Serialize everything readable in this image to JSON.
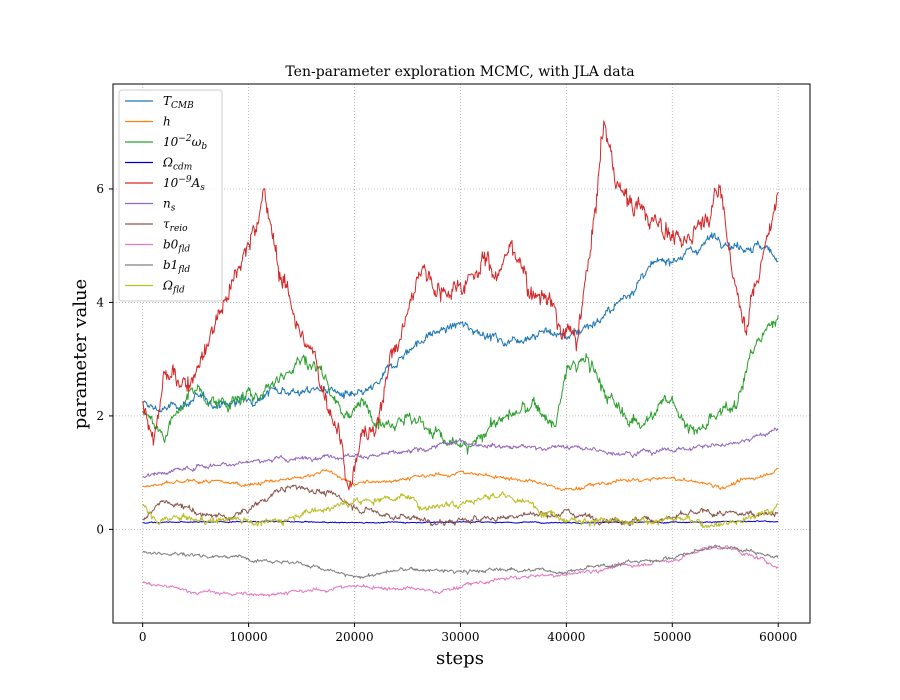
{
  "chart_data": {
    "type": "line",
    "title": "Ten-parameter exploration MCMC, with JLA data",
    "xlabel": "steps",
    "ylabel": "parameter value",
    "xlim": [
      -2800,
      63000
    ],
    "ylim": [
      -1.65,
      7.85
    ],
    "x_ticks": [
      0,
      10000,
      20000,
      30000,
      40000,
      50000,
      60000
    ],
    "x_tick_labels": [
      "0",
      "10000",
      "20000",
      "30000",
      "40000",
      "50000",
      "60000"
    ],
    "y_ticks": [
      0,
      2,
      4,
      6
    ],
    "y_tick_labels": [
      "0",
      "2",
      "4",
      "6"
    ],
    "grid": true,
    "legend_position": "top-left",
    "series": [
      {
        "name": "T_CMB",
        "color": "#1f77b4",
        "noise": 0.06,
        "x": [
          0,
          2000,
          5000,
          8000,
          10000,
          13000,
          15000,
          17000,
          20000,
          22000,
          24000,
          26000,
          28000,
          30000,
          32000,
          34000,
          36000,
          38000,
          40000,
          42000,
          44000,
          46000,
          48000,
          50000,
          52000,
          54000,
          56000,
          58000,
          60000
        ],
        "y": [
          2.2,
          2.1,
          2.3,
          2.2,
          2.3,
          2.5,
          2.4,
          2.5,
          2.3,
          2.5,
          3.0,
          3.3,
          3.5,
          3.6,
          3.5,
          3.3,
          3.4,
          3.5,
          3.4,
          3.6,
          3.8,
          4.2,
          4.6,
          4.8,
          4.9,
          5.2,
          5.0,
          5.0,
          4.8
        ]
      },
      {
        "name": "h",
        "color": "#ff7f0e",
        "noise": 0.025,
        "x": [
          0,
          5000,
          10000,
          15000,
          17000,
          20000,
          25000,
          30000,
          35000,
          40000,
          45000,
          50000,
          55000,
          60000
        ],
        "y": [
          0.75,
          0.85,
          0.8,
          0.9,
          1.05,
          0.8,
          0.9,
          1.0,
          0.9,
          0.7,
          0.85,
          0.9,
          0.75,
          1.05
        ]
      },
      {
        "name": "10^-2 ω_b",
        "color": "#2ca02c",
        "noise": 0.09,
        "x": [
          0,
          2000,
          5000,
          7000,
          10000,
          13000,
          15000,
          17000,
          19000,
          21000,
          23000,
          25000,
          27000,
          29000,
          31000,
          33000,
          35000,
          37000,
          39000,
          40000,
          42000,
          44000,
          46000,
          48000,
          50000,
          52000,
          54000,
          56000,
          58000,
          60000
        ],
        "y": [
          2.1,
          1.7,
          2.5,
          2.2,
          2.3,
          2.7,
          3.0,
          2.8,
          2.0,
          2.2,
          1.9,
          2.0,
          1.8,
          1.5,
          1.4,
          1.9,
          2.0,
          2.2,
          1.8,
          2.8,
          3.0,
          2.3,
          1.9,
          2.0,
          2.3,
          1.7,
          1.9,
          2.3,
          3.3,
          3.8
        ]
      },
      {
        "name": "Ω_cdm",
        "color": "#0000cc",
        "noise": 0.008,
        "x": [
          0,
          10000,
          20000,
          30000,
          40000,
          50000,
          60000
        ],
        "y": [
          0.12,
          0.14,
          0.12,
          0.13,
          0.12,
          0.13,
          0.14
        ]
      },
      {
        "name": "10^-9 A_s",
        "color": "#d62728",
        "noise": 0.14,
        "x": [
          0,
          1000,
          2000,
          4000,
          6000,
          8000,
          10000,
          11500,
          13000,
          15000,
          17000,
          18500,
          19500,
          21000,
          22000,
          23000,
          25000,
          26500,
          28000,
          30000,
          32000,
          33500,
          35000,
          37000,
          38000,
          39500,
          41000,
          42500,
          43500,
          45000,
          47000,
          49000,
          51000,
          53000,
          54500,
          56000,
          57000,
          58500,
          60000
        ],
        "y": [
          2.3,
          1.5,
          2.7,
          2.5,
          3.3,
          4.2,
          5.0,
          5.9,
          4.5,
          3.5,
          2.5,
          1.8,
          0.8,
          1.8,
          1.6,
          2.8,
          3.8,
          4.7,
          4.2,
          4.3,
          4.8,
          4.5,
          5.0,
          4.1,
          4.2,
          3.5,
          3.3,
          5.2,
          7.2,
          6.0,
          5.6,
          5.4,
          5.0,
          5.5,
          6.1,
          4.2,
          3.6,
          4.8,
          5.9
        ]
      },
      {
        "name": "n_s",
        "color": "#9467bd",
        "noise": 0.03,
        "x": [
          0,
          5000,
          10000,
          15000,
          18000,
          22000,
          25000,
          30000,
          35000,
          40000,
          45000,
          50000,
          55000,
          60000
        ],
        "y": [
          0.95,
          1.1,
          1.2,
          1.25,
          1.3,
          1.3,
          1.35,
          1.55,
          1.45,
          1.45,
          1.35,
          1.4,
          1.5,
          1.75
        ]
      },
      {
        "name": "τ_reio",
        "color": "#8c564b",
        "noise": 0.04,
        "x": [
          0,
          2000,
          5000,
          8000,
          10000,
          13000,
          15000,
          18000,
          20000,
          23000,
          26000,
          28000,
          30000,
          33000,
          36000,
          40000,
          43000,
          46000,
          50000,
          53000,
          56000,
          58000,
          60000
        ],
        "y": [
          0.2,
          0.5,
          0.3,
          0.2,
          0.35,
          0.7,
          0.75,
          0.6,
          0.4,
          0.25,
          0.2,
          0.1,
          0.15,
          0.2,
          0.25,
          0.3,
          0.2,
          0.15,
          0.2,
          0.3,
          0.25,
          0.3,
          0.3
        ]
      },
      {
        "name": "b0_fld",
        "color": "#e377c2",
        "noise": 0.025,
        "x": [
          0,
          5000,
          10000,
          15000,
          20000,
          25000,
          28000,
          30000,
          35000,
          40000,
          45000,
          50000,
          53000,
          55000,
          60000
        ],
        "y": [
          -0.95,
          -1.1,
          -1.15,
          -1.1,
          -1.0,
          -1.05,
          -1.1,
          -1.0,
          -0.85,
          -0.8,
          -0.65,
          -0.55,
          -0.35,
          -0.3,
          -0.65
        ]
      },
      {
        "name": "b1_fld",
        "color": "#7f7f7f",
        "noise": 0.025,
        "x": [
          0,
          5000,
          10000,
          15000,
          20000,
          25000,
          30000,
          35000,
          40000,
          45000,
          50000,
          54000,
          57000,
          60000
        ],
        "y": [
          -0.4,
          -0.45,
          -0.5,
          -0.6,
          -0.85,
          -0.7,
          -0.75,
          -0.7,
          -0.75,
          -0.6,
          -0.5,
          -0.3,
          -0.35,
          -0.5
        ]
      },
      {
        "name": "Ω_fld",
        "color": "#bcbd22",
        "noise": 0.05,
        "x": [
          0,
          1500,
          3000,
          6000,
          9000,
          12000,
          15000,
          18000,
          21000,
          24000,
          27000,
          30000,
          34000,
          37000,
          40000,
          43000,
          46000,
          50000,
          53000,
          56000,
          58000,
          60000
        ],
        "y": [
          0.4,
          0.1,
          0.2,
          0.15,
          0.2,
          0.1,
          0.3,
          0.4,
          0.5,
          0.6,
          0.4,
          0.5,
          0.6,
          0.4,
          0.2,
          0.15,
          0.1,
          0.2,
          0.1,
          0.15,
          0.25,
          0.4
        ]
      }
    ]
  },
  "legend": {
    "items": [
      {
        "base": "T",
        "sup": "",
        "sub": "CMB",
        "color": "#1f77b4"
      },
      {
        "base": "h",
        "sup": "",
        "sub": "",
        "color": "#ff7f0e"
      },
      {
        "base": "10",
        "sup": "−2",
        "sub": "",
        "suffix": "ω",
        "suffix_sub": "b",
        "color": "#2ca02c"
      },
      {
        "base": "Ω",
        "sup": "",
        "sub": "cdm",
        "color": "#0000cc"
      },
      {
        "base": "10",
        "sup": "−9",
        "sub": "",
        "suffix": "A",
        "suffix_sub": "s",
        "color": "#d62728"
      },
      {
        "base": "n",
        "sup": "",
        "sub": "s",
        "color": "#9467bd"
      },
      {
        "base": "τ",
        "sup": "",
        "sub": "reio",
        "color": "#8c564b"
      },
      {
        "base": "b0",
        "sup": "",
        "sub": "fld",
        "color": "#e377c2"
      },
      {
        "base": "b1",
        "sup": "",
        "sub": "fld",
        "color": "#7f7f7f"
      },
      {
        "base": "Ω",
        "sup": "",
        "sub": "fld",
        "color": "#bcbd22"
      }
    ]
  }
}
